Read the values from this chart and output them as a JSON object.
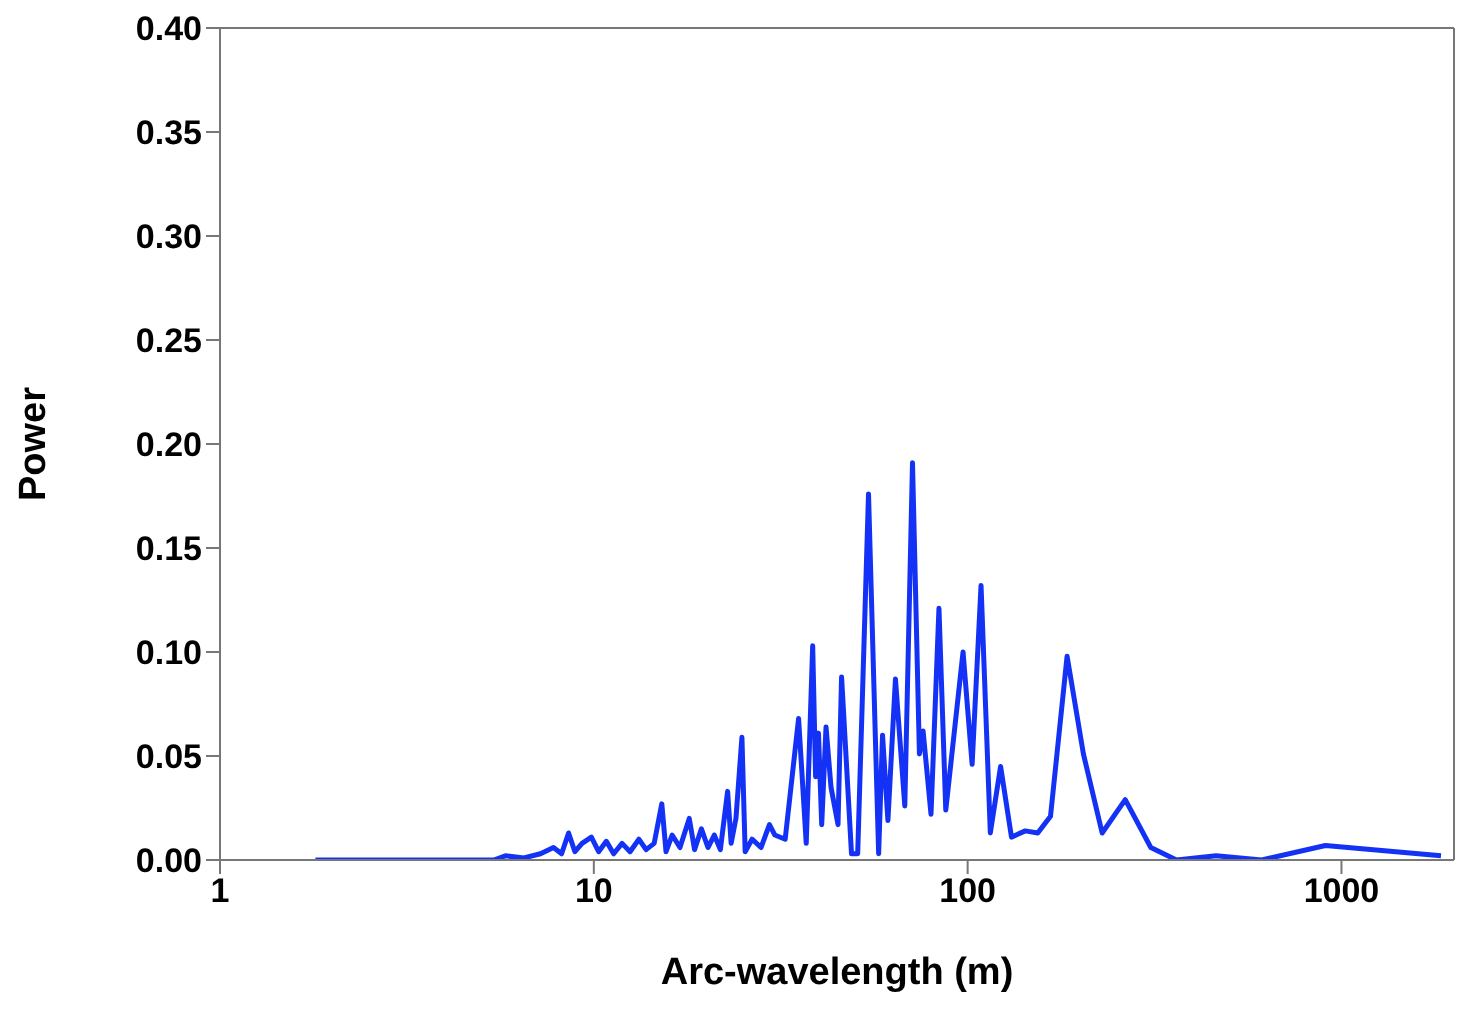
{
  "chart_data": {
    "type": "line",
    "xlabel": "Arc-wavelength (m)",
    "ylabel": "Power",
    "log": "x",
    "xlim": [
      1,
      2000
    ],
    "xticks": [
      1,
      10,
      100,
      1000
    ],
    "ylim": [
      0,
      0.4
    ],
    "yticks": [
      {
        "value": 0,
        "label": "0.00"
      },
      0.05,
      {
        "value": 0.1,
        "label": "0.10"
      },
      0.15,
      {
        "value": 0.2,
        "label": "0.20"
      },
      0.25,
      {
        "value": 0.3,
        "label": "0.30"
      },
      0.35,
      {
        "value": 0.4,
        "label": "0.40"
      }
    ],
    "marker": "none",
    "line_style": "solid",
    "x": [
      1.8,
      5.4,
      5.8,
      6.5,
      7.2,
      7.8,
      8.2,
      8.56,
      8.9,
      9.3,
      9.85,
      10.3,
      10.8,
      11.3,
      11.9,
      12.5,
      13.2,
      13.8,
      14.5,
      15.2,
      15.6,
      16.2,
      17,
      18,
      18.6,
      19.4,
      20.2,
      21,
      21.8,
      22.8,
      23.3,
      24,
      24.9,
      25.4,
      26.5,
      28,
      29.5,
      30.5,
      32.5,
      35.3,
      37,
      38.5,
      39.2,
      39.9,
      40.7,
      41.8,
      43.1,
      45,
      46,
      48.9,
      50.8,
      54.3,
      57.8,
      59.2,
      61.2,
      64.1,
      67.9,
      71.2,
      74.3,
      76,
      79.8,
      83.8,
      87.4,
      97.2,
      102.8,
      108.6,
      115,
      122.5,
      131,
      142.6,
      154,
      166.6,
      184.5,
      204,
      229,
      264,
      309,
      362,
      462,
      612,
      906,
      1846
    ],
    "series": [
      {
        "color": "#1432f5",
        "values": [
          0,
          0,
          0.002,
          0.001,
          0.003,
          0.006,
          0.003,
          0.013,
          0.004,
          0.008,
          0.011,
          0.004,
          0.009,
          0.003,
          0.008,
          0.004,
          0.01,
          0.005,
          0.008,
          0.027,
          0.004,
          0.012,
          0.006,
          0.02,
          0.005,
          0.015,
          0.006,
          0.012,
          0.005,
          0.033,
          0.008,
          0.02,
          0.059,
          0.004,
          0.01,
          0.006,
          0.017,
          0.012,
          0.01,
          0.068,
          0.008,
          0.103,
          0.04,
          0.061,
          0.017,
          0.064,
          0.035,
          0.017,
          0.088,
          0.003,
          0.003,
          0.176,
          0.003,
          0.06,
          0.019,
          0.087,
          0.026,
          0.191,
          0.051,
          0.062,
          0.022,
          0.121,
          0.024,
          0.1,
          0.046,
          0.132,
          0.013,
          0.045,
          0.011,
          0.014,
          0.013,
          0.021,
          0.098,
          0.051,
          0.013,
          0.029,
          0.006,
          0,
          0.002,
          0,
          0.007,
          0.002
        ]
      }
    ]
  }
}
